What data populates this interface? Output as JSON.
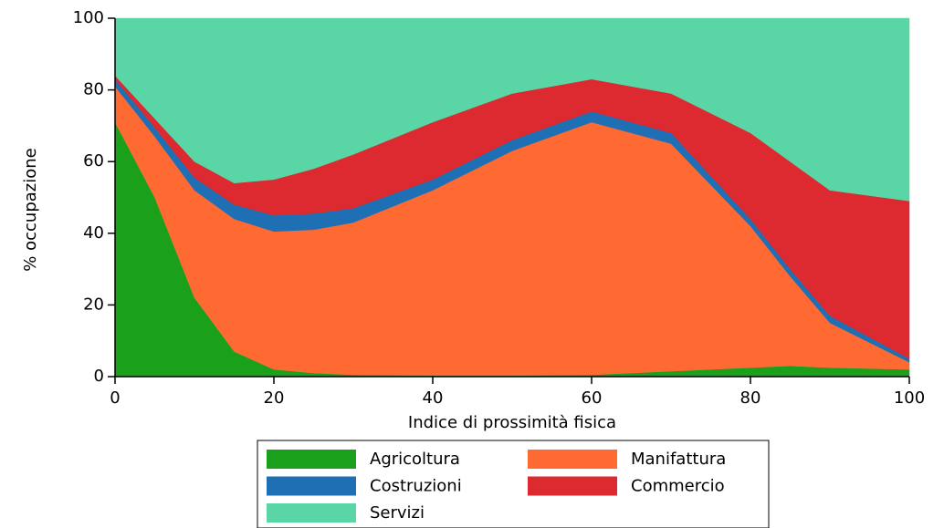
{
  "chart_data": {
    "type": "area",
    "stacked": true,
    "x": [
      0,
      5,
      10,
      15,
      20,
      25,
      30,
      40,
      50,
      60,
      70,
      80,
      85,
      90,
      100
    ],
    "series": [
      {
        "name": "Agricoltura",
        "color": "#1aa01a",
        "values": [
          71,
          50,
          22,
          7,
          2,
          1,
          0.5,
          0.3,
          0.3,
          0.5,
          1.5,
          2.5,
          3,
          2.5,
          2
        ]
      },
      {
        "name": "Manifattura",
        "color": "#ff6a33",
        "values": [
          10,
          17,
          30,
          37,
          38.5,
          40,
          42.5,
          51.7,
          62.7,
          70.5,
          63.5,
          39.5,
          25,
          12.5,
          2
        ]
      },
      {
        "name": "Costruzioni",
        "color": "#1f6fb5",
        "values": [
          2,
          2.5,
          3.5,
          4,
          4.5,
          4.5,
          4,
          3,
          3,
          3,
          3,
          2,
          2,
          2,
          1
        ]
      },
      {
        "name": "Commercio",
        "color": "#dc2a30",
        "values": [
          1,
          2.5,
          4.5,
          6,
          10,
          12.5,
          15,
          16,
          13,
          9,
          11,
          24,
          30,
          35,
          44
        ]
      },
      {
        "name": "Servizi",
        "color": "#5ad6a6",
        "values": [
          16,
          28,
          40,
          46,
          45,
          42,
          38,
          29,
          21,
          17,
          21,
          32,
          40,
          48,
          51
        ]
      }
    ],
    "x_label": "Indice di prossimità fisica",
    "y_label": "% occupazione",
    "xlim": [
      0,
      100
    ],
    "xticks": [
      0,
      20,
      40,
      60,
      80,
      100
    ],
    "ylim": [
      0,
      100
    ],
    "yticks": [
      0,
      20,
      40,
      60,
      80,
      100
    ]
  }
}
